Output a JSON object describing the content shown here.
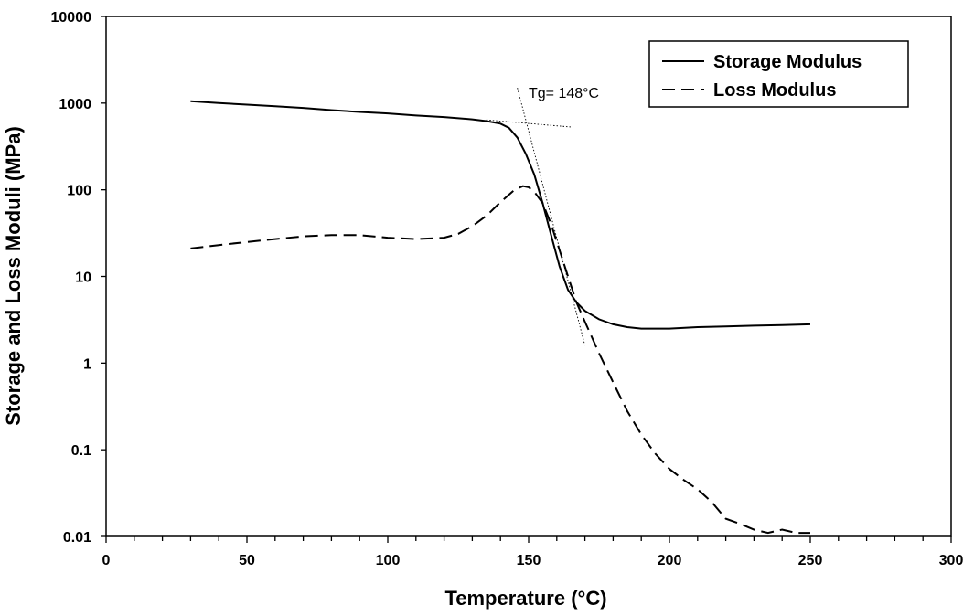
{
  "chart_data": {
    "type": "line",
    "xlabel": "Temperature (°C)",
    "ylabel": "Storage and Loss Moduli (MPa)",
    "xlim": [
      0,
      300
    ],
    "ylim": [
      0.01,
      10000
    ],
    "yscale": "log",
    "x_ticks": [
      0,
      50,
      100,
      150,
      200,
      250,
      300
    ],
    "x_tick_labels": [
      "0",
      "50",
      "100",
      "150",
      "200",
      "250",
      "300"
    ],
    "x_minor_step": 10,
    "y_ticks": [
      0.01,
      0.1,
      1,
      10,
      100,
      1000,
      10000
    ],
    "y_tick_labels": [
      "0.01",
      "0.1",
      "1",
      "10",
      "100",
      "1000",
      "10000"
    ],
    "grid": false,
    "legend_position": "top-right",
    "legend_box": true,
    "series": [
      {
        "name": "Storage Modulus",
        "style": "solid",
        "color": "#000000",
        "x": [
          30,
          40,
          50,
          60,
          70,
          80,
          90,
          100,
          110,
          120,
          130,
          135,
          140,
          143,
          146,
          149,
          152,
          155,
          158,
          161,
          164,
          167,
          170,
          175,
          180,
          185,
          190,
          200,
          210,
          220,
          230,
          240,
          250
        ],
        "y": [
          1050,
          1000,
          960,
          920,
          880,
          830,
          790,
          760,
          720,
          690,
          650,
          620,
          580,
          520,
          400,
          260,
          150,
          70,
          30,
          13,
          7,
          5,
          4,
          3.2,
          2.8,
          2.6,
          2.5,
          2.5,
          2.6,
          2.65,
          2.7,
          2.75,
          2.8
        ]
      },
      {
        "name": "Loss Modulus",
        "style": "dashed",
        "color": "#000000",
        "x": [
          30,
          40,
          50,
          60,
          70,
          80,
          90,
          100,
          110,
          120,
          125,
          130,
          135,
          140,
          145,
          148,
          150,
          152,
          155,
          158,
          161,
          164,
          167,
          170,
          175,
          180,
          185,
          190,
          195,
          200,
          205,
          210,
          215,
          220,
          225,
          230,
          235,
          240,
          245,
          250
        ],
        "y": [
          21,
          23,
          25,
          27,
          29,
          30,
          30,
          28,
          27,
          28,
          31,
          38,
          50,
          72,
          100,
          110,
          107,
          95,
          70,
          40,
          20,
          10,
          5,
          3,
          1.3,
          0.6,
          0.28,
          0.15,
          0.09,
          0.06,
          0.045,
          0.035,
          0.025,
          0.016,
          0.014,
          0.012,
          0.011,
          0.012,
          0.011,
          0.011
        ]
      }
    ],
    "tangent_lines": [
      {
        "x": [
          135,
          165
        ],
        "y": [
          640,
          530
        ]
      },
      {
        "x": [
          146,
          170
        ],
        "y": [
          1500,
          1.6
        ]
      }
    ],
    "annotations": [
      {
        "text": "Tg= 148°C",
        "x": 150,
        "y": 1150
      }
    ]
  }
}
